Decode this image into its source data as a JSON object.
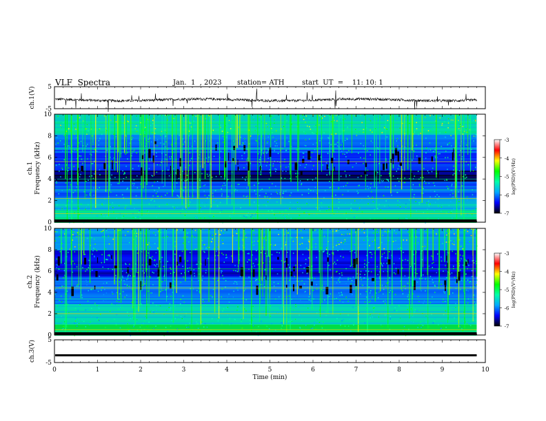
{
  "header": {
    "title": "VLF  Spectra",
    "date": "Jan.  1  , 2023",
    "station": "station= ATH",
    "start": "start  UT  =    11: 10: 1"
  },
  "chart_data": [
    {
      "type": "line",
      "ylabel": "ch.1(V)",
      "ylim": [
        -5,
        5
      ],
      "yticks": [
        "5",
        "-5"
      ],
      "xlim": [
        0,
        10
      ],
      "description_level": "waveform near -1 V with noise spikes"
    },
    {
      "type": "heatmap",
      "ylabel_top": "ch.1",
      "ylabel": "Frequency  (kHz)",
      "ylim": [
        0,
        10
      ],
      "yticks": [
        "0",
        "2",
        "4",
        "6",
        "8",
        "10"
      ],
      "xlim": [
        0,
        10
      ],
      "colorbar": {
        "label": "log(PSD)(V²/Hz)",
        "ticks": [
          "-3",
          "-4",
          "-5",
          "-6",
          "-7"
        ],
        "range": [
          -7,
          -3
        ],
        "colors": [
          "#000000",
          "#0000ff",
          "#00aaff",
          "#00ffaa",
          "#00ff00",
          "#ffff00",
          "#ff0000",
          "#ffffff"
        ]
      }
    },
    {
      "type": "heatmap",
      "ylabel_top": "ch.2",
      "ylabel": "Frequency  (kHz)",
      "ylim": [
        0,
        10
      ],
      "yticks": [
        "0",
        "2",
        "4",
        "6",
        "8",
        "10"
      ],
      "xlim": [
        0,
        10
      ],
      "colorbar": {
        "label": "log(PSD)(V²/Hz)",
        "ticks": [
          "-3",
          "-4",
          "-5",
          "-6",
          "-7"
        ],
        "range": [
          -7,
          -3
        ],
        "colors": [
          "#000000",
          "#0000ff",
          "#00aaff",
          "#00ffaa",
          "#00ff00",
          "#ffff00",
          "#ff0000",
          "#ffffff"
        ]
      }
    },
    {
      "type": "line",
      "ylabel": "ch.3(V)",
      "ylim": [
        -5,
        5
      ],
      "yticks": [
        "5",
        "-5"
      ],
      "xlim": [
        0,
        10
      ],
      "xlabel": "Time  (min)",
      "xticks": [
        "0",
        "1",
        "2",
        "3",
        "4",
        "5",
        "6",
        "7",
        "8",
        "9",
        "10"
      ],
      "data_end_x": 9.8,
      "level": -1.8
    }
  ]
}
